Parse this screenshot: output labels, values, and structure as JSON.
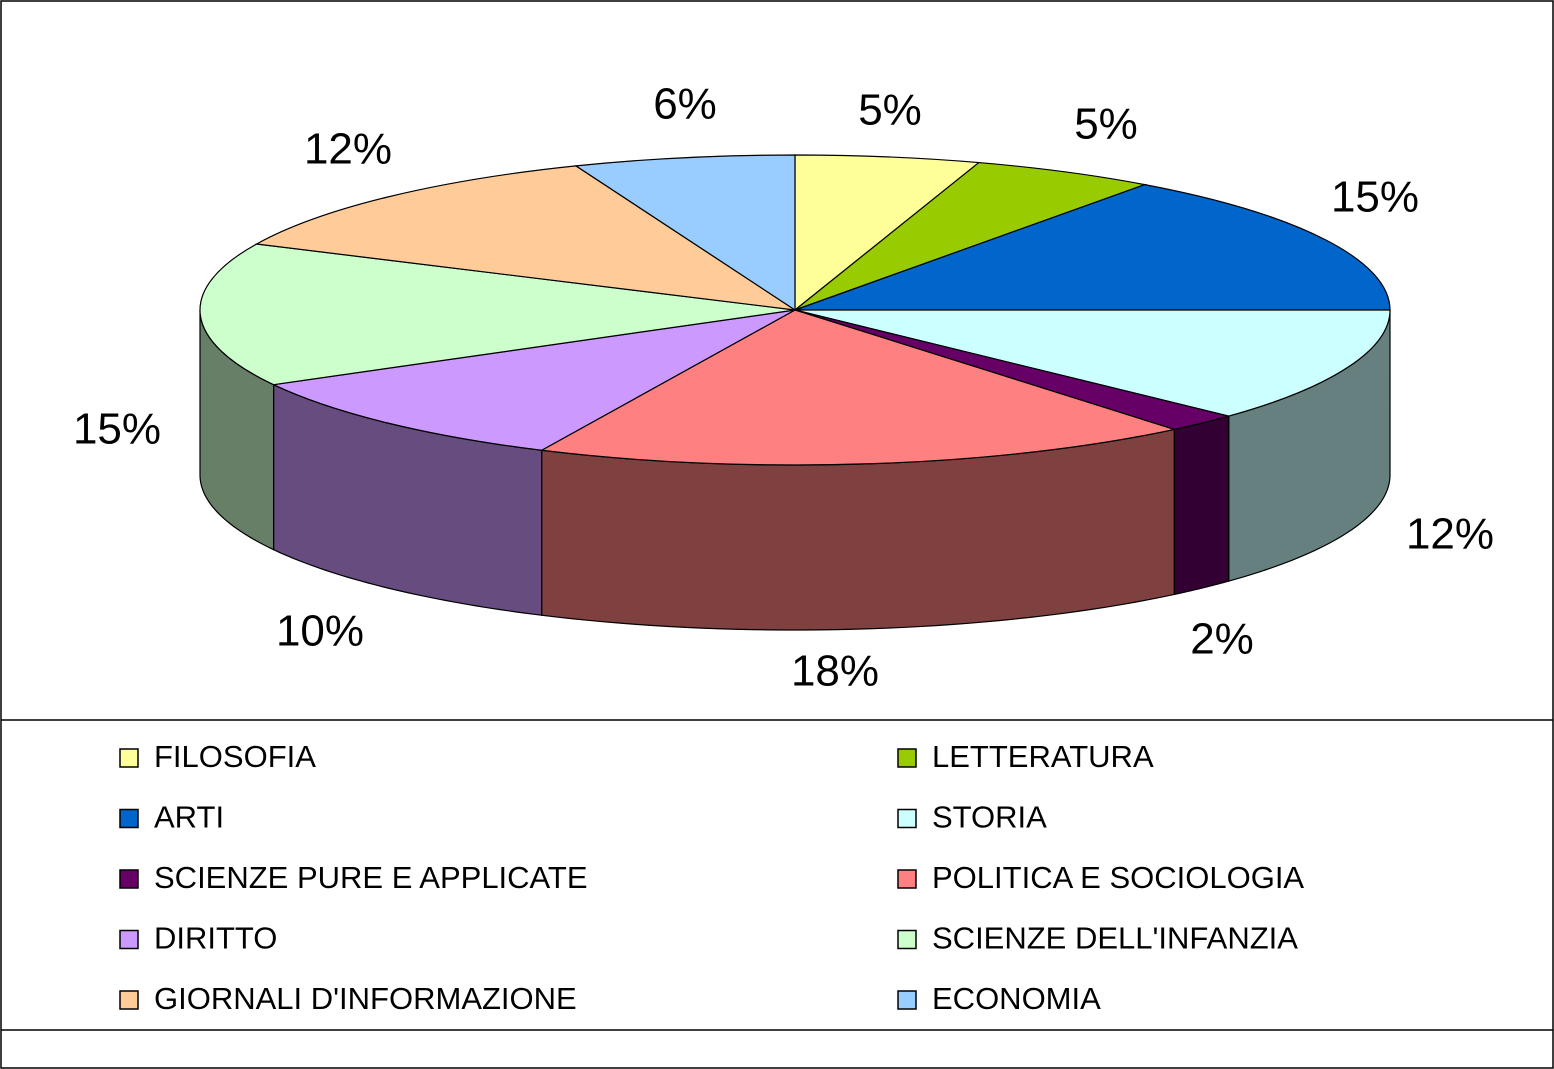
{
  "chart_data": {
    "type": "pie",
    "categories": [
      "FILOSOFIA",
      "LETTERATURA",
      "ARTI",
      "STORIA",
      "SCIENZE PURE E APPLICATE",
      "POLITICA E SOCIOLOGIA",
      "DIRITTO",
      "SCIENZE DELL'INFANZIA",
      "GIORNALI D'INFORMAZIONE",
      "ECONOMIA"
    ],
    "values": [
      5,
      5,
      15,
      12,
      2,
      18,
      10,
      15,
      12,
      6
    ],
    "value_labels": [
      "5%",
      "5%",
      "15%",
      "12%",
      "2%",
      "18%",
      "10%",
      "15%",
      "12%",
      "6%"
    ],
    "colors": [
      "#ffff99",
      "#99cc00",
      "#0066cc",
      "#ccffff",
      "#660066",
      "#ff8080",
      "#cc99ff",
      "#ccffcc",
      "#ffcc99",
      "#99ccff"
    ],
    "legend": "bottom"
  }
}
